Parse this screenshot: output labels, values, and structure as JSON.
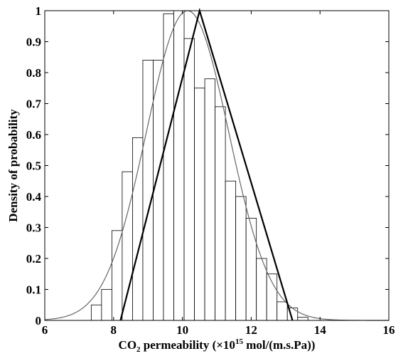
{
  "chart_data": {
    "type": "bar",
    "xlabel": {
      "prefix": "CO",
      "subscript": "2",
      "middle": " permeability (×10",
      "superscript": "15",
      "suffix": " mol/(m.s.Pa))"
    },
    "ylabel": "Density of probability",
    "xlim": [
      6,
      16
    ],
    "ylim": [
      0,
      1
    ],
    "xticks": [
      "6",
      "8",
      "10",
      "12",
      "14",
      "16"
    ],
    "yticks": [
      "0",
      "0.1",
      "0.2",
      "0.3",
      "0.4",
      "0.5",
      "0.6",
      "0.7",
      "0.8",
      "0.9",
      "1"
    ],
    "grid": false,
    "histogram": {
      "bin_width": 0.3,
      "bins": [
        {
          "x": 7.5,
          "value": 0.05
        },
        {
          "x": 7.8,
          "value": 0.1
        },
        {
          "x": 8.1,
          "value": 0.29
        },
        {
          "x": 8.4,
          "value": 0.48
        },
        {
          "x": 8.7,
          "value": 0.59
        },
        {
          "x": 9.0,
          "value": 0.84
        },
        {
          "x": 9.3,
          "value": 0.84
        },
        {
          "x": 9.6,
          "value": 0.99
        },
        {
          "x": 9.9,
          "value": 1.0
        },
        {
          "x": 10.2,
          "value": 0.91
        },
        {
          "x": 10.5,
          "value": 0.75
        },
        {
          "x": 10.8,
          "value": 0.78
        },
        {
          "x": 11.1,
          "value": 0.69
        },
        {
          "x": 11.4,
          "value": 0.45
        },
        {
          "x": 11.7,
          "value": 0.4
        },
        {
          "x": 12.0,
          "value": 0.33
        },
        {
          "x": 12.3,
          "value": 0.2
        },
        {
          "x": 12.6,
          "value": 0.15
        },
        {
          "x": 12.9,
          "value": 0.06
        },
        {
          "x": 13.2,
          "value": 0.04
        },
        {
          "x": 13.5,
          "value": 0.01
        }
      ]
    },
    "normal_curve": {
      "mean": 10.15,
      "sd": 1.2,
      "peak": 1.0,
      "color": "#666666"
    },
    "triangular": {
      "points": [
        [
          8.2,
          0
        ],
        [
          10.5,
          1.0
        ],
        [
          13.2,
          0
        ]
      ],
      "color": "#000000"
    }
  }
}
